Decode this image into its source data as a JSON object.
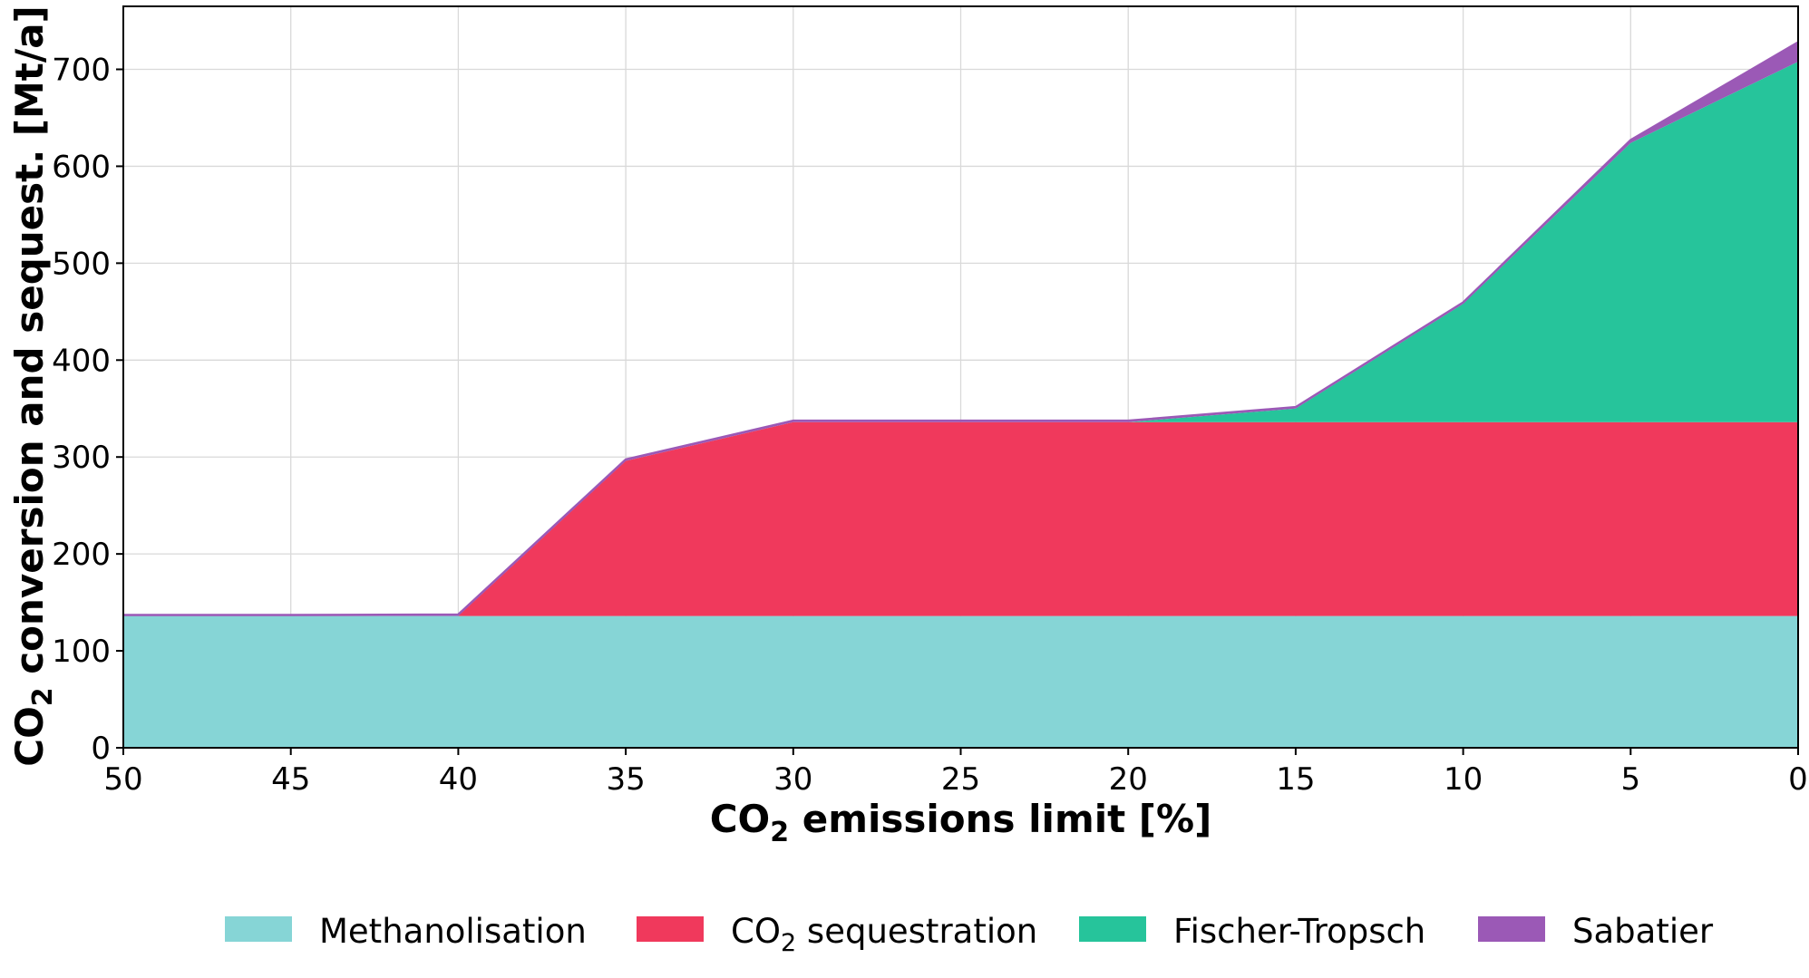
{
  "chart_data": {
    "type": "area",
    "stacked": true,
    "x": [
      50,
      45,
      40,
      35,
      30,
      25,
      20,
      15,
      10,
      5,
      0
    ],
    "xlim": [
      50,
      0
    ],
    "ylim": [
      0,
      765
    ],
    "xticks": [
      50,
      45,
      40,
      35,
      30,
      25,
      20,
      15,
      10,
      5,
      0
    ],
    "yticks": [
      0,
      100,
      200,
      300,
      400,
      500,
      600,
      700
    ],
    "grid": true,
    "legend_position": "bottom",
    "xlabel": {
      "main": "CO",
      "sub": "2",
      "rest": " emissions limit [%]"
    },
    "ylabel": {
      "main": "CO",
      "sub": "2",
      "rest": " conversion and sequest. [Mt/a]"
    },
    "series": [
      {
        "key": "methanolisation",
        "name": "Methanolisation",
        "color": "#86d5d6",
        "values": [
          136,
          136,
          136,
          136,
          136,
          136,
          136,
          136,
          136,
          136,
          136
        ]
      },
      {
        "key": "co2_sequestration",
        "name": "CO2 sequestration",
        "label": {
          "main": "CO",
          "sub": "2",
          "rest": " sequestration"
        },
        "color": "#f0395c",
        "values": [
          0,
          0,
          0,
          160,
          200,
          200,
          200,
          200,
          200,
          200,
          200
        ]
      },
      {
        "key": "fischer_tropsch",
        "name": "Fischer-Tropsch",
        "color": "#26c49b",
        "values": [
          0,
          0,
          0,
          0,
          0,
          0,
          0,
          14,
          122,
          288,
          372
        ]
      },
      {
        "key": "sabatier",
        "name": "Sabatier",
        "color": "#9b59b6",
        "values": [
          1,
          1,
          1.5,
          1.5,
          1.5,
          1.5,
          1.5,
          1.5,
          1.5,
          3,
          20
        ]
      }
    ]
  }
}
